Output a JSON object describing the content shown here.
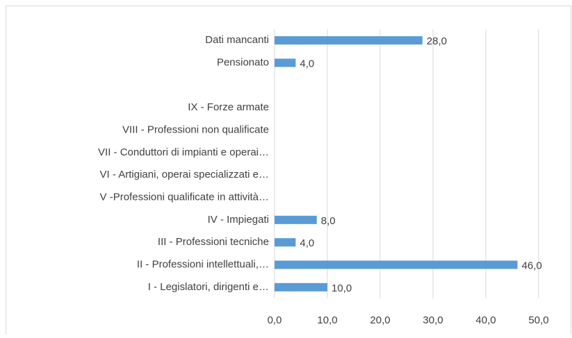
{
  "chart_data": {
    "type": "hbar",
    "categories": [
      "Dati mancanti",
      "Pensionato",
      null,
      "IX - Forze armate",
      "VIII - Professioni non qualificate",
      "VII - Conduttori di impianti e operai…",
      "VI - Artigiani, operai specializzati e…",
      "V -Professioni qualificate in attività…",
      "IV - Impiegati",
      "III - Professioni tecniche",
      "II - Professioni intellettuali,…",
      "I - Legislatori, dirigenti e…"
    ],
    "values": [
      28,
      4,
      null,
      null,
      null,
      null,
      null,
      null,
      8,
      4,
      46,
      10
    ],
    "value_labels": [
      "28,0",
      "4,0",
      null,
      null,
      null,
      null,
      null,
      null,
      "8,0",
      "4,0",
      "46,0",
      "10,0"
    ],
    "color": "#5b9bd5",
    "xlim": [
      0,
      50
    ],
    "xticks": [
      {
        "value": 0,
        "label": "0,0"
      },
      {
        "value": 10,
        "label": "10,0"
      },
      {
        "value": 20,
        "label": "20,0"
      },
      {
        "value": 30,
        "label": "30,0"
      },
      {
        "value": 40,
        "label": "40,0"
      },
      {
        "value": 50,
        "label": "50,0"
      }
    ],
    "grid": true
  }
}
